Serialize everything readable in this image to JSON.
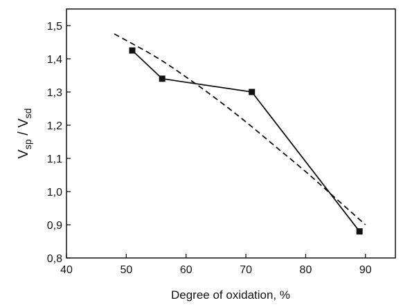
{
  "chart_data": {
    "type": "line",
    "title": "",
    "xlabel": "Degree of oxidation, %",
    "ylabel": {
      "parts": [
        "V",
        "sp",
        " / V",
        "sd"
      ]
    },
    "xlim": [
      40,
      95
    ],
    "ylim": [
      0.8,
      1.55
    ],
    "x_ticks": [
      40,
      50,
      60,
      70,
      80,
      90
    ],
    "x_tick_labels": [
      "40",
      "50",
      "60",
      "70",
      "80",
      "90"
    ],
    "y_ticks": [
      0.8,
      0.9,
      1.0,
      1.1,
      1.2,
      1.3,
      1.4,
      1.5
    ],
    "y_tick_labels": [
      "0,8",
      "0,9",
      "1,0",
      "1,1",
      "1,2",
      "1,3",
      "1,4",
      "1,5"
    ],
    "grid": false,
    "legend": "none",
    "series": [
      {
        "style": "solid-line-square-markers",
        "color": "#111111",
        "x": [
          51,
          56,
          71,
          89
        ],
        "y": [
          1.425,
          1.34,
          1.3,
          0.88
        ]
      },
      {
        "style": "dashed-line",
        "color": "#111111",
        "x": [
          48,
          55,
          60,
          65,
          70,
          75,
          80,
          85,
          90
        ],
        "y": [
          1.475,
          1.405,
          1.345,
          1.28,
          1.21,
          1.135,
          1.06,
          0.98,
          0.9
        ]
      }
    ]
  }
}
